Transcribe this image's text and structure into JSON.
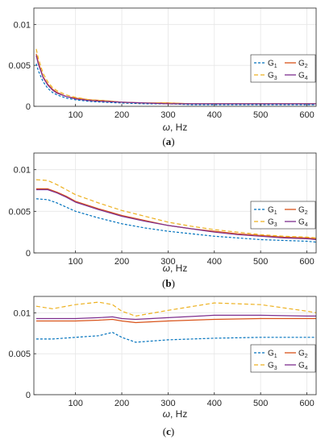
{
  "chart_data": [
    {
      "type": "line",
      "caption_letter": "a",
      "xlabel_sym": "ω",
      "xlabel_unit": ", Hz",
      "xlim": [
        10,
        620
      ],
      "ylim": [
        0,
        0.012
      ],
      "xticks": [
        "100",
        "200",
        "300",
        "400",
        "500",
        "600"
      ],
      "xtick_values": [
        100,
        200,
        300,
        400,
        500,
        600
      ],
      "yticks": [
        "0",
        "0.005",
        "0.01"
      ],
      "ytick_values": [
        0,
        0.005,
        0.01
      ],
      "grid": true,
      "legend_placement": "right",
      "x": [
        15,
        20,
        30,
        40,
        50,
        60,
        80,
        100,
        130,
        160,
        200,
        250,
        300,
        350,
        400,
        450,
        500,
        550,
        600,
        620
      ],
      "series": [
        {
          "name": "G1",
          "color": "#0072BD",
          "dash": "3,2",
          "values": [
            0.0052,
            0.0043,
            0.003,
            0.0022,
            0.0017,
            0.0014,
            0.001,
            0.0008,
            0.0006,
            0.0005,
            0.0004,
            0.0003,
            0.0003,
            0.0002,
            0.0002,
            0.0002,
            0.0002,
            0.0002,
            0.0002,
            0.0002
          ]
        },
        {
          "name": "G2",
          "color": "#D95319",
          "dash": "",
          "values": [
            0.0064,
            0.0053,
            0.0036,
            0.0027,
            0.0021,
            0.0017,
            0.0012,
            0.001,
            0.0008,
            0.0007,
            0.0005,
            0.0004,
            0.0004,
            0.0003,
            0.0003,
            0.0003,
            0.0003,
            0.0003,
            0.0003,
            0.0003
          ]
        },
        {
          "name": "G3",
          "color": "#EDB120",
          "dash": "5,3",
          "values": [
            0.007,
            0.0058,
            0.004,
            0.003,
            0.0023,
            0.0019,
            0.0014,
            0.0011,
            0.0008,
            0.0007,
            0.0005,
            0.0004,
            0.0004,
            0.0003,
            0.0003,
            0.0003,
            0.0003,
            0.0003,
            0.0003,
            0.0003
          ]
        },
        {
          "name": "G4",
          "color": "#7E2F8E",
          "dash": "",
          "values": [
            0.0062,
            0.0051,
            0.0035,
            0.0026,
            0.002,
            0.0016,
            0.0012,
            0.0009,
            0.0007,
            0.0006,
            0.0005,
            0.0004,
            0.0003,
            0.0003,
            0.0003,
            0.0003,
            0.0003,
            0.0003,
            0.0003,
            0.0003
          ]
        }
      ]
    },
    {
      "type": "line",
      "caption_letter": "b",
      "xlabel_sym": "ω",
      "xlabel_unit": ", Hz",
      "xlim": [
        10,
        620
      ],
      "ylim": [
        0,
        0.012
      ],
      "xticks": [
        "100",
        "200",
        "300",
        "400",
        "500",
        "600"
      ],
      "xtick_values": [
        100,
        200,
        300,
        400,
        500,
        600
      ],
      "yticks": [
        "0",
        "0.005",
        "0.01"
      ],
      "ytick_values": [
        0,
        0.005,
        0.01
      ],
      "grid": true,
      "legend_placement": "right",
      "x": [
        15,
        40,
        60,
        80,
        100,
        150,
        200,
        250,
        300,
        350,
        400,
        450,
        500,
        550,
        600,
        620
      ],
      "series": [
        {
          "name": "G1",
          "color": "#0072BD",
          "dash": "3,2",
          "values": [
            0.0065,
            0.0064,
            0.006,
            0.0055,
            0.005,
            0.0042,
            0.0035,
            0.003,
            0.0026,
            0.0023,
            0.002,
            0.0018,
            0.0016,
            0.0015,
            0.0014,
            0.0013
          ]
        },
        {
          "name": "G2",
          "color": "#D95319",
          "dash": "",
          "values": [
            0.0077,
            0.0077,
            0.0073,
            0.0068,
            0.0062,
            0.0053,
            0.0045,
            0.0039,
            0.0033,
            0.0029,
            0.0026,
            0.0023,
            0.0021,
            0.0019,
            0.0018,
            0.0017
          ]
        },
        {
          "name": "G3",
          "color": "#EDB120",
          "dash": "5,3",
          "values": [
            0.0088,
            0.0087,
            0.0082,
            0.0076,
            0.007,
            0.006,
            0.0051,
            0.0044,
            0.0037,
            0.0032,
            0.0028,
            0.0025,
            0.0022,
            0.002,
            0.0019,
            0.0018
          ]
        },
        {
          "name": "G4",
          "color": "#7E2F8E",
          "dash": "",
          "values": [
            0.0076,
            0.0076,
            0.0072,
            0.0067,
            0.0061,
            0.0052,
            0.0044,
            0.0038,
            0.0033,
            0.0029,
            0.0025,
            0.0022,
            0.002,
            0.0018,
            0.0017,
            0.0016
          ]
        }
      ]
    },
    {
      "type": "line",
      "caption_letter": "c",
      "xlabel_sym": "ω",
      "xlabel_unit": ", Hz",
      "xlim": [
        10,
        620
      ],
      "ylim": [
        0,
        0.012
      ],
      "xticks": [
        "100",
        "200",
        "300",
        "400",
        "500",
        "600"
      ],
      "xtick_values": [
        100,
        200,
        300,
        400,
        500,
        600
      ],
      "yticks": [
        "0",
        "0.005",
        "0.01"
      ],
      "ytick_values": [
        0,
        0.005,
        0.01
      ],
      "grid": true,
      "legend_placement": "bottom-right",
      "x": [
        15,
        50,
        100,
        150,
        180,
        200,
        230,
        300,
        400,
        500,
        600,
        620
      ],
      "series": [
        {
          "name": "G1",
          "color": "#0072BD",
          "dash": "3,2",
          "values": [
            0.0068,
            0.0068,
            0.007,
            0.0072,
            0.0076,
            0.007,
            0.0064,
            0.0067,
            0.0069,
            0.007,
            0.007,
            0.007
          ]
        },
        {
          "name": "G2",
          "color": "#D95319",
          "dash": "",
          "values": [
            0.009,
            0.009,
            0.009,
            0.0091,
            0.0092,
            0.009,
            0.0088,
            0.009,
            0.0092,
            0.0093,
            0.0093,
            0.0093
          ]
        },
        {
          "name": "G3",
          "color": "#EDB120",
          "dash": "5,3",
          "values": [
            0.0108,
            0.0105,
            0.011,
            0.0113,
            0.011,
            0.0102,
            0.0096,
            0.0103,
            0.0112,
            0.011,
            0.0102,
            0.01
          ]
        },
        {
          "name": "G4",
          "color": "#7E2F8E",
          "dash": "",
          "values": [
            0.0093,
            0.0093,
            0.0093,
            0.0094,
            0.0095,
            0.0093,
            0.0092,
            0.0094,
            0.0097,
            0.0097,
            0.0096,
            0.0096
          ]
        }
      ]
    }
  ]
}
